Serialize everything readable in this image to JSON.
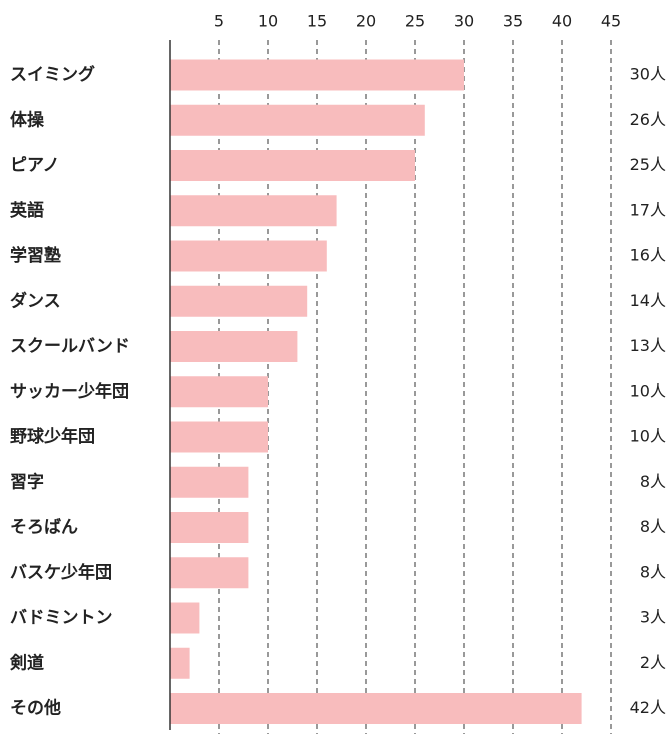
{
  "chart_data": {
    "type": "hbar",
    "categories": [
      "スイミング",
      "体操",
      "ピアノ",
      "英語",
      "学習塾",
      "ダンス",
      "スクールバンド",
      "サッカー少年団",
      "野球少年団",
      "習字",
      "そろばん",
      "バスケ少年団",
      "バドミントン",
      "剣道",
      "その他"
    ],
    "values": [
      30,
      26,
      25,
      17,
      16,
      14,
      13,
      10,
      10,
      8,
      8,
      8,
      3,
      2,
      42
    ],
    "value_labels": [
      "30人",
      "26人",
      "25人",
      "17人",
      "16人",
      "14人",
      "13人",
      "10人",
      "10人",
      "8人",
      "8人",
      "8人",
      "3人",
      "2人",
      "42人"
    ],
    "color": "#f8bcbd",
    "xlim": [
      0,
      45
    ],
    "xticks": [
      5,
      10,
      15,
      20,
      25,
      30,
      35,
      40,
      45
    ],
    "grid": true
  }
}
